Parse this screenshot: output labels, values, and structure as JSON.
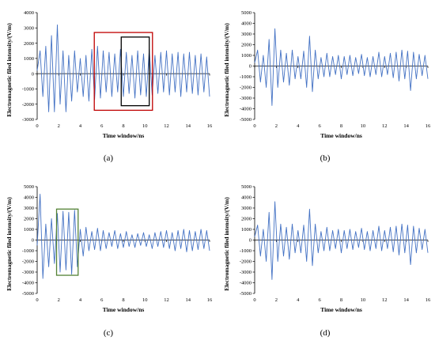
{
  "chart_data": [
    {
      "type": "line",
      "caption": "(a)",
      "xlabel": "Time window/ns",
      "ylabel": "Electromagnetic filed intensity/(V/m)",
      "xlim": [
        0,
        16
      ],
      "ylim": [
        -3000,
        4000
      ],
      "xticks": [
        0,
        2,
        4,
        6,
        8,
        10,
        12,
        14,
        16
      ],
      "yticks": [
        -3000,
        -2000,
        -1000,
        0,
        1000,
        2000,
        3000,
        4000
      ],
      "grid": false,
      "line_color": "#4472c4",
      "series": [
        {
          "x": [
            0,
            0.27,
            0.53,
            0.8,
            1.07,
            1.33,
            1.6,
            1.87,
            2.13,
            2.4,
            2.67,
            2.93,
            3.2,
            3.47,
            3.73,
            4,
            4.27,
            4.53,
            4.8,
            5.07,
            5.33,
            5.6,
            5.87,
            6.13,
            6.4,
            6.67,
            6.93,
            7.2,
            7.47,
            7.73,
            8,
            8.27,
            8.53,
            8.8,
            9.07,
            9.33,
            9.6,
            9.87,
            10.13,
            10.4,
            10.67,
            10.93,
            11.2,
            11.47,
            11.73,
            12,
            12.27,
            12.53,
            12.8,
            13.07,
            13.33,
            13.6,
            13.87,
            14.13,
            14.4,
            14.67,
            14.93,
            15.2,
            15.47,
            15.73,
            16
          ],
          "y": [
            200,
            1500,
            -1500,
            1800,
            -2500,
            2500,
            -2500,
            3200,
            -2000,
            1500,
            -2500,
            1200,
            -1800,
            1500,
            -1200,
            1000,
            -1500,
            1200,
            -1800,
            1600,
            -1700,
            1800,
            -1600,
            1500,
            -1200,
            1400,
            -1500,
            1300,
            -1200,
            1600,
            -1500,
            1400,
            -1300,
            1200,
            -1600,
            1500,
            -1400,
            1300,
            -1500,
            1600,
            -1400,
            1200,
            -1300,
            1400,
            -1200,
            1500,
            -1400,
            1300,
            -1200,
            1400,
            -1500,
            1300,
            -1200,
            1400,
            -1300,
            1200,
            -1400,
            1300,
            -1200,
            1100,
            -1500
          ]
        }
      ],
      "annotations": [
        {
          "shape": "rectangle",
          "color": "#c00000",
          "x": [
            5.3,
            10.7
          ],
          "y": [
            -2400,
            2700
          ]
        },
        {
          "shape": "rectangle",
          "color": "#000000",
          "x": [
            7.8,
            10.4
          ],
          "y": [
            -2100,
            2400
          ]
        }
      ]
    },
    {
      "type": "line",
      "caption": "(b)",
      "xlabel": "Time window/ns",
      "ylabel": "Electromagnetic filed intensity/(V/m)",
      "xlim": [
        0,
        16
      ],
      "ylim": [
        -5000,
        5000
      ],
      "xticks": [
        0,
        2,
        4,
        6,
        8,
        10,
        12,
        14,
        16
      ],
      "yticks": [
        -5000,
        -4000,
        -3000,
        -2000,
        -1000,
        0,
        1000,
        2000,
        3000,
        4000,
        5000
      ],
      "grid": false,
      "line_color": "#4472c4",
      "series": [
        {
          "x": [
            0,
            0.27,
            0.53,
            0.8,
            1.07,
            1.33,
            1.6,
            1.87,
            2.13,
            2.4,
            2.67,
            2.93,
            3.2,
            3.47,
            3.73,
            4,
            4.27,
            4.53,
            4.8,
            5.07,
            5.33,
            5.6,
            5.87,
            6.13,
            6.4,
            6.67,
            6.93,
            7.2,
            7.47,
            7.73,
            8,
            8.27,
            8.53,
            8.8,
            9.07,
            9.33,
            9.6,
            9.87,
            10.13,
            10.4,
            10.67,
            10.93,
            11.2,
            11.47,
            11.73,
            12,
            12.27,
            12.53,
            12.8,
            13.07,
            13.33,
            13.6,
            13.87,
            14.13,
            14.4,
            14.67,
            14.93,
            15.2,
            15.47,
            15.73,
            16
          ],
          "y": [
            300,
            1500,
            -1500,
            1000,
            -2000,
            2500,
            -3700,
            3500,
            -2000,
            1500,
            -1500,
            1200,
            -1800,
            1500,
            -1200,
            900,
            -1200,
            1400,
            -2000,
            2800,
            -2400,
            1500,
            -1200,
            800,
            -1000,
            1200,
            -1000,
            900,
            -800,
            1000,
            -1200,
            900,
            -800,
            1000,
            -900,
            800,
            -700,
            1100,
            -900,
            800,
            -1000,
            900,
            -800,
            1300,
            -1000,
            900,
            -800,
            1200,
            -1100,
            1300,
            -1400,
            1500,
            -1200,
            1400,
            -2300,
            1300,
            -1200,
            1100,
            -900,
            1000,
            -1200
          ]
        }
      ]
    },
    {
      "type": "line",
      "caption": "(c)",
      "xlabel": "Time window/ns",
      "ylabel": "Electromagnetic filed intensity/(V/m)",
      "xlim": [
        0,
        16
      ],
      "ylim": [
        -5000,
        5000
      ],
      "xticks": [
        0,
        2,
        4,
        6,
        8,
        10,
        12,
        14,
        16
      ],
      "yticks": [
        -5000,
        -4000,
        -3000,
        -2000,
        -1000,
        0,
        1000,
        2000,
        3000,
        4000,
        5000
      ],
      "grid": false,
      "line_color": "#4472c4",
      "series": [
        {
          "x": [
            0,
            0.27,
            0.53,
            0.8,
            1.07,
            1.33,
            1.6,
            1.87,
            2.13,
            2.4,
            2.67,
            2.93,
            3.2,
            3.47,
            3.73,
            4,
            4.27,
            4.53,
            4.8,
            5.07,
            5.33,
            5.6,
            5.87,
            6.13,
            6.4,
            6.67,
            6.93,
            7.2,
            7.47,
            7.73,
            8,
            8.27,
            8.53,
            8.8,
            9.07,
            9.33,
            9.6,
            9.87,
            10.13,
            10.4,
            10.67,
            10.93,
            11.2,
            11.47,
            11.73,
            12,
            12.27,
            12.53,
            12.8,
            13.07,
            13.33,
            13.6,
            13.87,
            14.13,
            14.4,
            14.67,
            14.93,
            15.2,
            15.47,
            15.73,
            16
          ],
          "y": [
            -500,
            4300,
            -3600,
            1500,
            -2500,
            2000,
            -2200,
            2500,
            -3000,
            2700,
            -2800,
            2600,
            -3200,
            2800,
            -2500,
            1000,
            -1500,
            1200,
            -1000,
            800,
            -900,
            1100,
            -1000,
            900,
            -800,
            700,
            -600,
            900,
            -800,
            600,
            -700,
            800,
            -600,
            500,
            -700,
            600,
            -500,
            700,
            -600,
            500,
            -800,
            700,
            -600,
            800,
            -700,
            900,
            -800,
            700,
            -1000,
            900,
            -800,
            1000,
            -1100,
            900,
            -1000,
            800,
            -900,
            1000,
            -800,
            900,
            -1000
          ]
        }
      ],
      "annotations": [
        {
          "shape": "rectangle",
          "color": "#548235",
          "x": [
            1.8,
            3.8
          ],
          "y": [
            -3300,
            2900
          ]
        }
      ]
    },
    {
      "type": "line",
      "caption": "(d)",
      "xlabel": "Time window/ns",
      "ylabel": "Electromagnetic filed intensity/(V/m)",
      "xlim": [
        0,
        16
      ],
      "ylim": [
        -5000,
        5000
      ],
      "xticks": [
        0,
        2,
        4,
        6,
        8,
        10,
        12,
        14,
        16
      ],
      "yticks": [
        -5000,
        -4000,
        -3000,
        -2000,
        -1000,
        0,
        1000,
        2000,
        3000,
        4000,
        5000
      ],
      "grid": false,
      "line_color": "#4472c4",
      "series": [
        {
          "x": [
            0,
            0.27,
            0.53,
            0.8,
            1.07,
            1.33,
            1.6,
            1.87,
            2.13,
            2.4,
            2.67,
            2.93,
            3.2,
            3.47,
            3.73,
            4,
            4.27,
            4.53,
            4.8,
            5.07,
            5.33,
            5.6,
            5.87,
            6.13,
            6.4,
            6.67,
            6.93,
            7.2,
            7.47,
            7.73,
            8,
            8.27,
            8.53,
            8.8,
            9.07,
            9.33,
            9.6,
            9.87,
            10.13,
            10.4,
            10.67,
            10.93,
            11.2,
            11.47,
            11.73,
            12,
            12.27,
            12.53,
            12.8,
            13.07,
            13.33,
            13.6,
            13.87,
            14.13,
            14.4,
            14.67,
            14.93,
            15.2,
            15.47,
            15.73,
            16
          ],
          "y": [
            300,
            1400,
            -1500,
            1000,
            -2000,
            2600,
            -3700,
            3600,
            -2000,
            1500,
            -1500,
            1200,
            -1800,
            1500,
            -1200,
            900,
            -1200,
            1400,
            -2000,
            2900,
            -2400,
            1500,
            -1200,
            800,
            -1000,
            1200,
            -1000,
            900,
            -800,
            1000,
            -1200,
            900,
            -800,
            1000,
            -900,
            800,
            -700,
            1100,
            -900,
            800,
            -1000,
            900,
            -800,
            1300,
            -1000,
            900,
            -800,
            1200,
            -1100,
            1300,
            -1400,
            1500,
            -1200,
            1400,
            -2300,
            1300,
            -1200,
            1100,
            -900,
            1000,
            -1200
          ]
        }
      ]
    }
  ]
}
